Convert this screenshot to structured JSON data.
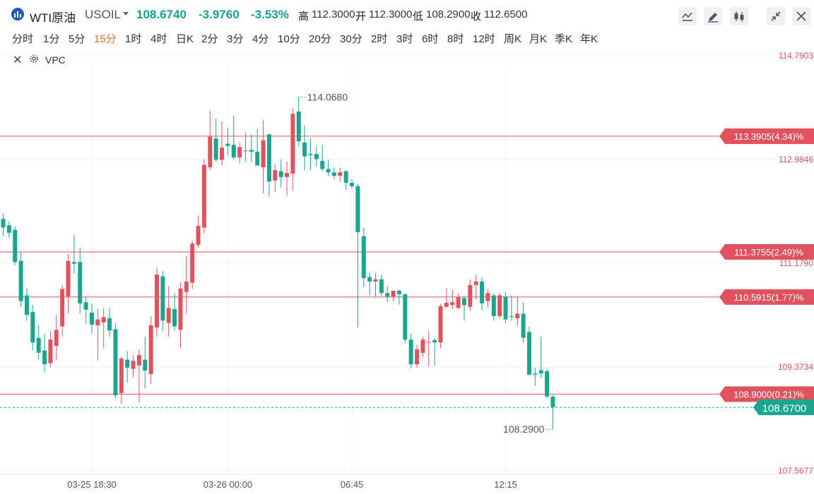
{
  "header": {
    "instrument_name": "WTI原油",
    "instrument_code": "USOIL",
    "last_price": "108.6740",
    "change": "-3.9760",
    "change_pct": "-3.53%",
    "high_label": "高",
    "high": "112.3000",
    "open_label": "开",
    "open": "112.3000",
    "low_label": "低",
    "low": "108.2900",
    "close_label": "收",
    "close": "112.6500"
  },
  "intervals": [
    "分时",
    "1分",
    "5分",
    "15分",
    "1时",
    "4时",
    "日K",
    "2分",
    "3分",
    "4分",
    "10分",
    "20分",
    "30分",
    "2时",
    "3时",
    "6时",
    "8时",
    "12时",
    "周K",
    "月K",
    "季K",
    "年K"
  ],
  "active_interval": "15分",
  "toolbar": {
    "icons": [
      "line-style-icon",
      "pencil-icon",
      "candlestick-icon",
      "collapse-icon",
      "close-icon"
    ]
  },
  "indicator": {
    "name": "VPC"
  },
  "colors": {
    "up": "#e0525e",
    "down": "#1aa68e",
    "level_line": "#e06a72",
    "current_line": "#1aa68e"
  },
  "chart_data": {
    "type": "candlestick",
    "title": "",
    "y_axis_ticks": [
      "114.7903",
      "112.9846",
      "111.1790",
      "109.3734",
      "107.5677"
    ],
    "x_axis_ticks": [
      "03-25 18:30",
      "03-26 00:00",
      "06:45",
      "12:15"
    ],
    "ylim": [
      107.5677,
      114.7903
    ],
    "high_marker": "114.0680",
    "low_marker": "108.2900",
    "current_price": "108.6700",
    "price_levels": [
      {
        "price": 113.3905,
        "label": "113.3905(4.34)%"
      },
      {
        "price": 111.3755,
        "label": "111.3755(2.49)%"
      },
      {
        "price": 110.5915,
        "label": "110.5915(1.77)%"
      },
      {
        "price": 108.9,
        "label": "108.9000(0.21)%"
      }
    ],
    "candles": [
      {
        "o": 111.95,
        "h": 112.04,
        "l": 111.66,
        "c": 111.8
      },
      {
        "o": 111.84,
        "h": 111.91,
        "l": 111.62,
        "c": 111.71
      },
      {
        "o": 111.76,
        "h": 111.82,
        "l": 111.14,
        "c": 111.2
      },
      {
        "o": 111.22,
        "h": 111.38,
        "l": 110.42,
        "c": 110.52
      },
      {
        "o": 110.62,
        "h": 110.75,
        "l": 110.18,
        "c": 110.28
      },
      {
        "o": 110.33,
        "h": 110.45,
        "l": 109.66,
        "c": 109.8
      },
      {
        "o": 109.88,
        "h": 110.1,
        "l": 109.5,
        "c": 109.62
      },
      {
        "o": 109.66,
        "h": 109.95,
        "l": 109.28,
        "c": 109.42
      },
      {
        "o": 109.44,
        "h": 110.0,
        "l": 109.37,
        "c": 109.85
      },
      {
        "o": 109.74,
        "h": 110.28,
        "l": 109.5,
        "c": 110.02
      },
      {
        "o": 110.08,
        "h": 110.8,
        "l": 109.9,
        "c": 110.73
      },
      {
        "o": 110.6,
        "h": 111.34,
        "l": 110.3,
        "c": 111.22
      },
      {
        "o": 111.2,
        "h": 111.67,
        "l": 111.0,
        "c": 111.17
      },
      {
        "o": 111.2,
        "h": 111.45,
        "l": 110.3,
        "c": 110.48
      },
      {
        "o": 110.5,
        "h": 110.6,
        "l": 110.13,
        "c": 110.37
      },
      {
        "o": 110.32,
        "h": 110.48,
        "l": 109.95,
        "c": 110.11
      },
      {
        "o": 110.1,
        "h": 110.38,
        "l": 109.5,
        "c": 110.2
      },
      {
        "o": 110.15,
        "h": 110.4,
        "l": 109.7,
        "c": 110.24
      },
      {
        "o": 110.22,
        "h": 110.4,
        "l": 109.9,
        "c": 110.01
      },
      {
        "o": 110.03,
        "h": 110.13,
        "l": 108.83,
        "c": 108.88
      },
      {
        "o": 108.92,
        "h": 109.55,
        "l": 108.73,
        "c": 109.52
      },
      {
        "o": 109.5,
        "h": 109.65,
        "l": 109.1,
        "c": 109.36
      },
      {
        "o": 109.34,
        "h": 109.58,
        "l": 109.2,
        "c": 109.48
      },
      {
        "o": 109.4,
        "h": 109.68,
        "l": 108.75,
        "c": 109.58
      },
      {
        "o": 109.5,
        "h": 109.9,
        "l": 109.0,
        "c": 109.31
      },
      {
        "o": 109.25,
        "h": 110.25,
        "l": 109.08,
        "c": 110.1
      },
      {
        "o": 110.06,
        "h": 111.1,
        "l": 109.9,
        "c": 110.98
      },
      {
        "o": 110.95,
        "h": 111.04,
        "l": 110.0,
        "c": 110.18
      },
      {
        "o": 110.14,
        "h": 110.78,
        "l": 109.9,
        "c": 110.4
      },
      {
        "o": 110.38,
        "h": 110.66,
        "l": 110.0,
        "c": 110.08
      },
      {
        "o": 110.02,
        "h": 110.85,
        "l": 109.7,
        "c": 110.74
      },
      {
        "o": 110.68,
        "h": 111.3,
        "l": 110.3,
        "c": 110.86
      },
      {
        "o": 110.84,
        "h": 111.57,
        "l": 110.73,
        "c": 111.52
      },
      {
        "o": 111.5,
        "h": 112.0,
        "l": 111.45,
        "c": 111.83
      },
      {
        "o": 111.8,
        "h": 112.99,
        "l": 111.7,
        "c": 112.89
      },
      {
        "o": 112.85,
        "h": 113.83,
        "l": 112.8,
        "c": 113.38
      },
      {
        "o": 113.35,
        "h": 113.7,
        "l": 112.95,
        "c": 112.98
      },
      {
        "o": 112.98,
        "h": 113.65,
        "l": 112.88,
        "c": 113.19
      },
      {
        "o": 113.26,
        "h": 113.54,
        "l": 113.05,
        "c": 113.22
      },
      {
        "o": 113.24,
        "h": 113.75,
        "l": 112.98,
        "c": 113.02
      },
      {
        "o": 113.02,
        "h": 113.28,
        "l": 112.92,
        "c": 113.2
      },
      {
        "o": 113.14,
        "h": 113.45,
        "l": 112.95,
        "c": 113.14
      },
      {
        "o": 113.15,
        "h": 113.42,
        "l": 112.94,
        "c": 113.12
      },
      {
        "o": 113.12,
        "h": 113.52,
        "l": 112.9,
        "c": 112.88
      },
      {
        "o": 112.85,
        "h": 113.66,
        "l": 112.4,
        "c": 113.32
      },
      {
        "o": 113.42,
        "h": 113.44,
        "l": 112.34,
        "c": 112.6
      },
      {
        "o": 112.62,
        "h": 112.9,
        "l": 112.42,
        "c": 112.8
      },
      {
        "o": 112.78,
        "h": 112.98,
        "l": 112.5,
        "c": 112.68
      },
      {
        "o": 112.68,
        "h": 112.95,
        "l": 112.36,
        "c": 112.75
      },
      {
        "o": 112.74,
        "h": 113.87,
        "l": 112.45,
        "c": 113.78
      },
      {
        "o": 113.82,
        "h": 114.07,
        "l": 113.2,
        "c": 113.3
      },
      {
        "o": 113.28,
        "h": 113.58,
        "l": 112.8,
        "c": 113.04
      },
      {
        "o": 113.08,
        "h": 113.36,
        "l": 112.8,
        "c": 113.06
      },
      {
        "o": 113.08,
        "h": 113.22,
        "l": 112.86,
        "c": 112.99
      },
      {
        "o": 112.96,
        "h": 113.24,
        "l": 112.78,
        "c": 112.82
      },
      {
        "o": 112.82,
        "h": 112.98,
        "l": 112.7,
        "c": 112.76
      },
      {
        "o": 112.76,
        "h": 112.85,
        "l": 112.64,
        "c": 112.7
      },
      {
        "o": 112.7,
        "h": 112.84,
        "l": 112.6,
        "c": 112.76
      },
      {
        "o": 112.78,
        "h": 112.8,
        "l": 112.46,
        "c": 112.58
      },
      {
        "o": 112.58,
        "h": 112.64,
        "l": 112.48,
        "c": 112.52
      },
      {
        "o": 112.52,
        "h": 112.56,
        "l": 110.06,
        "c": 111.72
      },
      {
        "o": 111.65,
        "h": 111.8,
        "l": 110.76,
        "c": 110.92
      },
      {
        "o": 110.94,
        "h": 111.02,
        "l": 110.62,
        "c": 110.86
      },
      {
        "o": 110.86,
        "h": 111.0,
        "l": 110.6,
        "c": 110.9
      },
      {
        "o": 110.9,
        "h": 110.98,
        "l": 110.6,
        "c": 110.66
      },
      {
        "o": 110.66,
        "h": 110.78,
        "l": 110.5,
        "c": 110.6
      },
      {
        "o": 110.6,
        "h": 110.7,
        "l": 110.52,
        "c": 110.7
      },
      {
        "o": 110.7,
        "h": 110.72,
        "l": 110.46,
        "c": 110.64
      },
      {
        "o": 110.64,
        "h": 110.65,
        "l": 109.8,
        "c": 109.85
      },
      {
        "o": 109.85,
        "h": 109.96,
        "l": 109.35,
        "c": 109.42
      },
      {
        "o": 109.42,
        "h": 109.76,
        "l": 109.36,
        "c": 109.68
      },
      {
        "o": 109.62,
        "h": 109.9,
        "l": 109.55,
        "c": 109.85
      },
      {
        "o": 109.8,
        "h": 110.0,
        "l": 109.38,
        "c": 109.81
      },
      {
        "o": 109.84,
        "h": 109.88,
        "l": 109.4,
        "c": 109.8
      },
      {
        "o": 109.8,
        "h": 110.47,
        "l": 109.7,
        "c": 110.43
      },
      {
        "o": 110.42,
        "h": 110.75,
        "l": 110.4,
        "c": 110.49
      },
      {
        "o": 110.45,
        "h": 110.72,
        "l": 110.38,
        "c": 110.5
      },
      {
        "o": 110.4,
        "h": 110.66,
        "l": 110.38,
        "c": 110.59
      },
      {
        "o": 110.57,
        "h": 110.62,
        "l": 110.18,
        "c": 110.45
      },
      {
        "o": 110.42,
        "h": 110.9,
        "l": 110.35,
        "c": 110.8
      },
      {
        "o": 110.8,
        "h": 110.98,
        "l": 110.55,
        "c": 110.86
      },
      {
        "o": 110.86,
        "h": 110.94,
        "l": 110.36,
        "c": 110.48
      },
      {
        "o": 110.52,
        "h": 110.72,
        "l": 110.41,
        "c": 110.66
      },
      {
        "o": 110.62,
        "h": 110.65,
        "l": 110.18,
        "c": 110.26
      },
      {
        "o": 110.26,
        "h": 110.66,
        "l": 110.22,
        "c": 110.62
      },
      {
        "o": 110.6,
        "h": 110.68,
        "l": 110.14,
        "c": 110.2
      },
      {
        "o": 110.26,
        "h": 110.62,
        "l": 110.18,
        "c": 110.25
      },
      {
        "o": 110.22,
        "h": 110.6,
        "l": 110.1,
        "c": 110.3
      },
      {
        "o": 110.3,
        "h": 110.5,
        "l": 109.8,
        "c": 109.88
      },
      {
        "o": 109.98,
        "h": 110.08,
        "l": 109.22,
        "c": 109.24
      },
      {
        "o": 109.26,
        "h": 109.36,
        "l": 109.05,
        "c": 109.24
      },
      {
        "o": 109.32,
        "h": 109.9,
        "l": 109.18,
        "c": 109.26
      },
      {
        "o": 109.3,
        "h": 109.34,
        "l": 108.83,
        "c": 108.86
      },
      {
        "o": 108.86,
        "h": 108.88,
        "l": 108.29,
        "c": 108.67
      }
    ]
  }
}
